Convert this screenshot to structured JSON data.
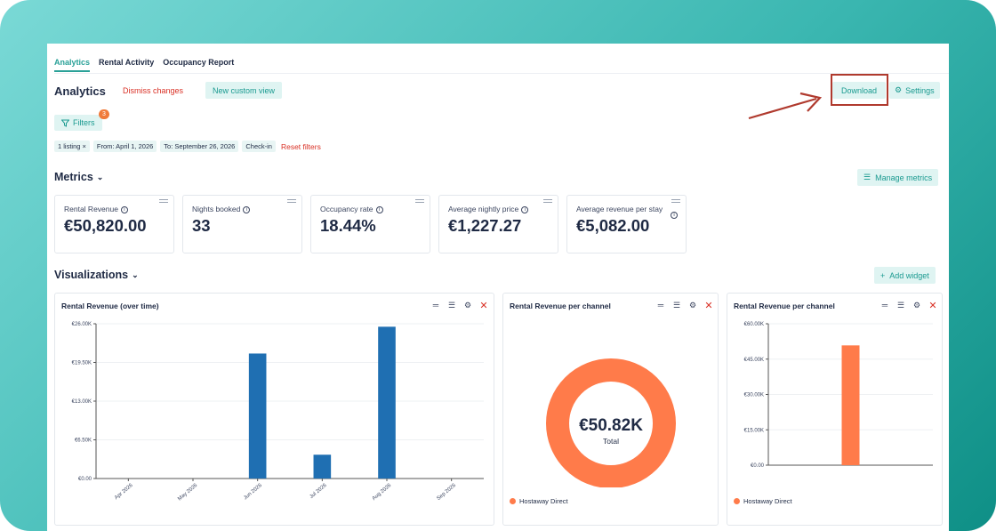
{
  "tabs": [
    {
      "label": "Analytics"
    },
    {
      "label": "Rental Activity"
    },
    {
      "label": "Occupancy Report"
    }
  ],
  "header": {
    "title": "Analytics",
    "dismiss": "Dismiss changes",
    "new_view": "New custom view",
    "download": "Download",
    "settings": "Settings"
  },
  "filters": {
    "label": "Filters",
    "count": "3",
    "chips": [
      "1 listing",
      "From: April 1, 2026",
      "To: September 26, 2026",
      "Check-in"
    ],
    "chip_close": "×",
    "reset": "Reset filters"
  },
  "metrics_section": {
    "title": "Metrics",
    "manage": "Manage metrics"
  },
  "metrics": [
    {
      "label": "Rental Revenue",
      "value": "€50,820.00"
    },
    {
      "label": "Nights booked",
      "value": "33"
    },
    {
      "label": "Occupancy rate",
      "value": "18.44%"
    },
    {
      "label": "Average nightly price",
      "value": "€1,227.27"
    },
    {
      "label": "Average revenue per stay",
      "value": "€5,082.00"
    }
  ],
  "viz_section": {
    "title": "Visualizations",
    "add": "Add widget"
  },
  "widgets": [
    {
      "title": "Rental Revenue (over time)"
    },
    {
      "title": "Rental Revenue per channel",
      "center_value": "€50.82K",
      "center_label": "Total",
      "legend": "Hostaway Direct"
    },
    {
      "title": "Rental Revenue per channel",
      "legend": "Hostaway Direct"
    }
  ],
  "colors": {
    "accent": "#1a9a90",
    "bar_blue": "#1f6fb2",
    "orange": "#ff7b4a",
    "danger": "#d93025"
  },
  "chart_data": [
    {
      "type": "bar",
      "title": "Rental Revenue (over time)",
      "categories": [
        "Apr 2026",
        "May 2026",
        "Jun 2026",
        "Jul 2026",
        "Aug 2026",
        "Sep 2026"
      ],
      "values": [
        0,
        0,
        21000,
        4000,
        25500,
        0
      ],
      "ylim": [
        0,
        26000
      ],
      "yticks": [
        "€0.00",
        "€6.50K",
        "€13.00K",
        "€19.50K",
        "€26.00K"
      ],
      "grid": true
    },
    {
      "type": "pie",
      "title": "Rental Revenue per channel",
      "series": [
        {
          "name": "Hostaway Direct",
          "values": [
            50820
          ]
        }
      ]
    },
    {
      "type": "bar",
      "title": "Rental Revenue per channel",
      "categories": [
        "Hostaway Direct"
      ],
      "values": [
        50820
      ],
      "ylim": [
        0,
        60000
      ],
      "yticks": [
        "€0.00",
        "€15.00K",
        "€30.00K",
        "€45.00K",
        "€60.00K"
      ],
      "grid": true
    }
  ]
}
